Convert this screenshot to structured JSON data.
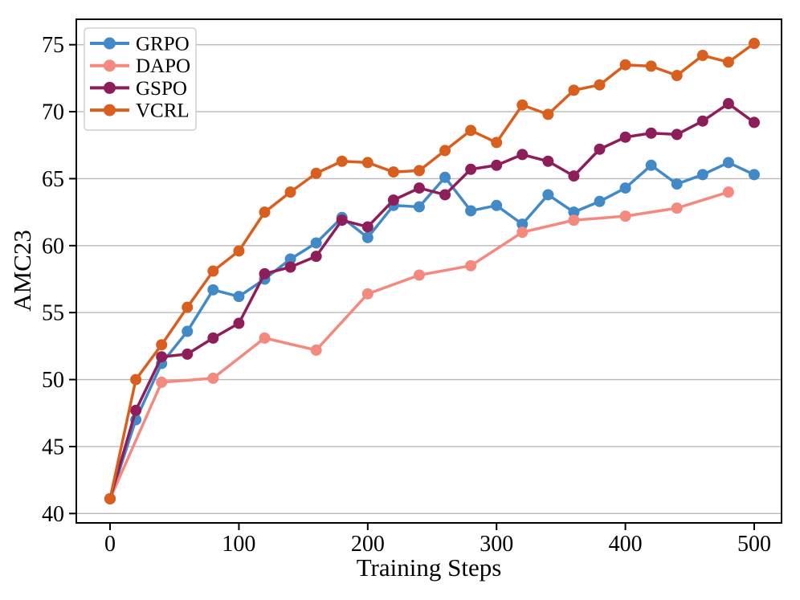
{
  "chart_data": {
    "type": "line",
    "xlabel": "Training Steps",
    "ylabel": "AMC23",
    "x_ticks": [
      0,
      100,
      200,
      300,
      400,
      500
    ],
    "y_ticks": [
      40,
      45,
      50,
      55,
      60,
      65,
      70,
      75
    ],
    "xlim": [
      -26.2,
      521.2
    ],
    "ylim": [
      39.3,
      76.9
    ],
    "grid": "horizontal-only",
    "legend": {
      "position": "upper-left",
      "entries": [
        "GRPO",
        "DAPO",
        "GSPO",
        "VCRL"
      ]
    },
    "series": [
      {
        "name": "GRPO",
        "color": "#4289c7",
        "x": [
          0,
          20,
          40,
          60,
          80,
          100,
          120,
          140,
          160,
          180,
          200,
          220,
          240,
          260,
          280,
          300,
          320,
          340,
          360,
          380,
          400,
          420,
          440,
          460,
          480,
          500
        ],
        "y": [
          41.1,
          47.0,
          51.2,
          53.6,
          56.7,
          56.2,
          57.5,
          59.0,
          60.2,
          62.1,
          60.6,
          63.0,
          62.9,
          65.1,
          62.6,
          63.0,
          61.6,
          63.8,
          62.5,
          63.3,
          64.3,
          66.0,
          64.6,
          65.3,
          66.2,
          65.3
        ]
      },
      {
        "name": "DAPO",
        "color": "#f3897f",
        "x": [
          0,
          40,
          80,
          120,
          160,
          200,
          240,
          280,
          320,
          360,
          400,
          440,
          480
        ],
        "y": [
          41.1,
          49.8,
          50.1,
          53.1,
          52.2,
          56.4,
          57.8,
          58.5,
          61.0,
          61.9,
          62.2,
          62.8,
          64.0
        ]
      },
      {
        "name": "GSPO",
        "color": "#8e1e5a",
        "x": [
          0,
          20,
          40,
          60,
          80,
          100,
          120,
          140,
          160,
          180,
          200,
          220,
          240,
          260,
          280,
          300,
          320,
          340,
          360,
          380,
          400,
          420,
          440,
          460,
          480,
          500
        ],
        "y": [
          41.1,
          47.7,
          51.7,
          51.9,
          53.1,
          54.2,
          57.9,
          58.4,
          59.2,
          61.9,
          61.4,
          63.4,
          64.3,
          63.8,
          65.7,
          66.0,
          66.8,
          66.3,
          65.2,
          67.2,
          68.1,
          68.4,
          68.3,
          69.3,
          70.6,
          69.2
        ]
      },
      {
        "name": "VCRL",
        "color": "#d95f1e",
        "x": [
          0,
          20,
          40,
          60,
          80,
          100,
          120,
          140,
          160,
          180,
          200,
          220,
          240,
          260,
          280,
          300,
          320,
          340,
          360,
          380,
          400,
          420,
          440,
          460,
          480,
          500
        ],
        "y": [
          41.1,
          50.0,
          52.6,
          55.4,
          58.1,
          59.6,
          62.5,
          64.0,
          65.4,
          66.3,
          66.2,
          65.5,
          65.6,
          67.1,
          68.6,
          67.7,
          70.5,
          69.8,
          71.6,
          72.0,
          73.5,
          73.4,
          72.7,
          74.2,
          73.7,
          75.1
        ]
      }
    ]
  },
  "style_colors": {
    "grid": "#b9b9b9",
    "spine": "#000000",
    "legend_border": "#cfcfcf",
    "background": "#ffffff"
  }
}
